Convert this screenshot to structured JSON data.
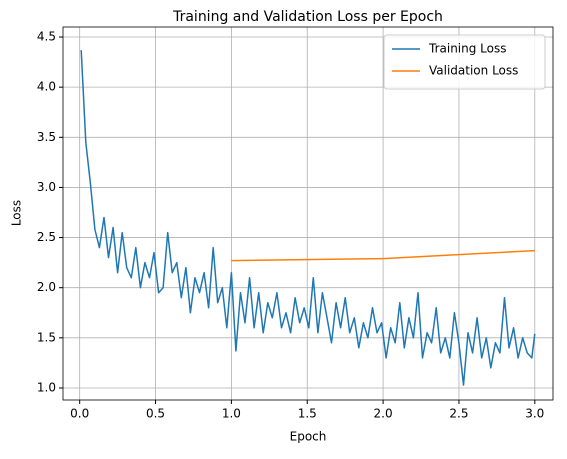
{
  "chart_data": {
    "type": "line",
    "title": "Training and Validation Loss per Epoch",
    "xlabel": "Epoch",
    "ylabel": "Loss",
    "xlim": [
      -0.11,
      3.12
    ],
    "ylim": [
      0.88,
      4.6
    ],
    "xticks": [
      {
        "value": 0,
        "label": "0.0"
      },
      0.5,
      {
        "value": 1,
        "label": "1.0"
      },
      1.5,
      {
        "value": 2,
        "label": "2.0"
      },
      2.5,
      {
        "value": 3,
        "label": "3.0"
      }
    ],
    "yticks": [
      {
        "value": 1,
        "label": "1.0"
      },
      1.5,
      {
        "value": 2,
        "label": "2.0"
      },
      2.5,
      {
        "value": 3,
        "label": "3.0"
      },
      3.5,
      {
        "value": 4,
        "label": "4.0"
      },
      4.5
    ],
    "grid": true,
    "legend": "upper right",
    "series": [
      {
        "name": "Training Loss",
        "color": "#1f77b4",
        "x": [
          0.01,
          0.04,
          0.07,
          0.1,
          0.13,
          0.16,
          0.19,
          0.22,
          0.25,
          0.28,
          0.31,
          0.34,
          0.37,
          0.4,
          0.43,
          0.46,
          0.49,
          0.52,
          0.55,
          0.58,
          0.61,
          0.64,
          0.67,
          0.7,
          0.73,
          0.76,
          0.79,
          0.82,
          0.85,
          0.88,
          0.91,
          0.94,
          0.97,
          1.0,
          1.03,
          1.06,
          1.09,
          1.12,
          1.15,
          1.18,
          1.21,
          1.24,
          1.27,
          1.3,
          1.33,
          1.36,
          1.39,
          1.42,
          1.45,
          1.48,
          1.51,
          1.54,
          1.57,
          1.6,
          1.63,
          1.66,
          1.69,
          1.72,
          1.75,
          1.78,
          1.81,
          1.84,
          1.87,
          1.9,
          1.93,
          1.96,
          1.99,
          2.02,
          2.05,
          2.08,
          2.11,
          2.14,
          2.17,
          2.2,
          2.23,
          2.26,
          2.29,
          2.32,
          2.35,
          2.38,
          2.41,
          2.44,
          2.47,
          2.5,
          2.53,
          2.56,
          2.59,
          2.62,
          2.65,
          2.68,
          2.71,
          2.74,
          2.77,
          2.8,
          2.83,
          2.86,
          2.89,
          2.92,
          2.95,
          2.98,
          3.0
        ],
        "values": [
          4.37,
          3.45,
          3.05,
          2.58,
          2.4,
          2.7,
          2.3,
          2.6,
          2.15,
          2.55,
          2.2,
          2.1,
          2.4,
          2.0,
          2.25,
          2.1,
          2.35,
          1.95,
          2.0,
          2.55,
          2.15,
          2.25,
          1.9,
          2.2,
          1.75,
          2.1,
          1.95,
          2.15,
          1.8,
          2.4,
          1.85,
          2.0,
          1.6,
          2.15,
          1.37,
          1.95,
          1.65,
          2.1,
          1.6,
          1.95,
          1.55,
          1.85,
          1.7,
          1.95,
          1.6,
          1.75,
          1.55,
          1.9,
          1.65,
          1.8,
          1.6,
          2.1,
          1.55,
          1.95,
          1.7,
          1.45,
          1.85,
          1.6,
          1.9,
          1.55,
          1.7,
          1.4,
          1.65,
          1.5,
          1.8,
          1.55,
          1.65,
          1.3,
          1.6,
          1.45,
          1.85,
          1.4,
          1.7,
          1.5,
          1.95,
          1.3,
          1.55,
          1.45,
          1.8,
          1.35,
          1.5,
          1.3,
          1.75,
          1.45,
          1.03,
          1.55,
          1.35,
          1.7,
          1.3,
          1.5,
          1.2,
          1.45,
          1.35,
          1.9,
          1.4,
          1.6,
          1.3,
          1.5,
          1.35,
          1.3,
          1.54
        ]
      },
      {
        "name": "Validation Loss",
        "color": "#ff7f0e",
        "x": [
          1,
          2,
          3
        ],
        "values": [
          2.27,
          2.29,
          2.37
        ]
      }
    ]
  }
}
